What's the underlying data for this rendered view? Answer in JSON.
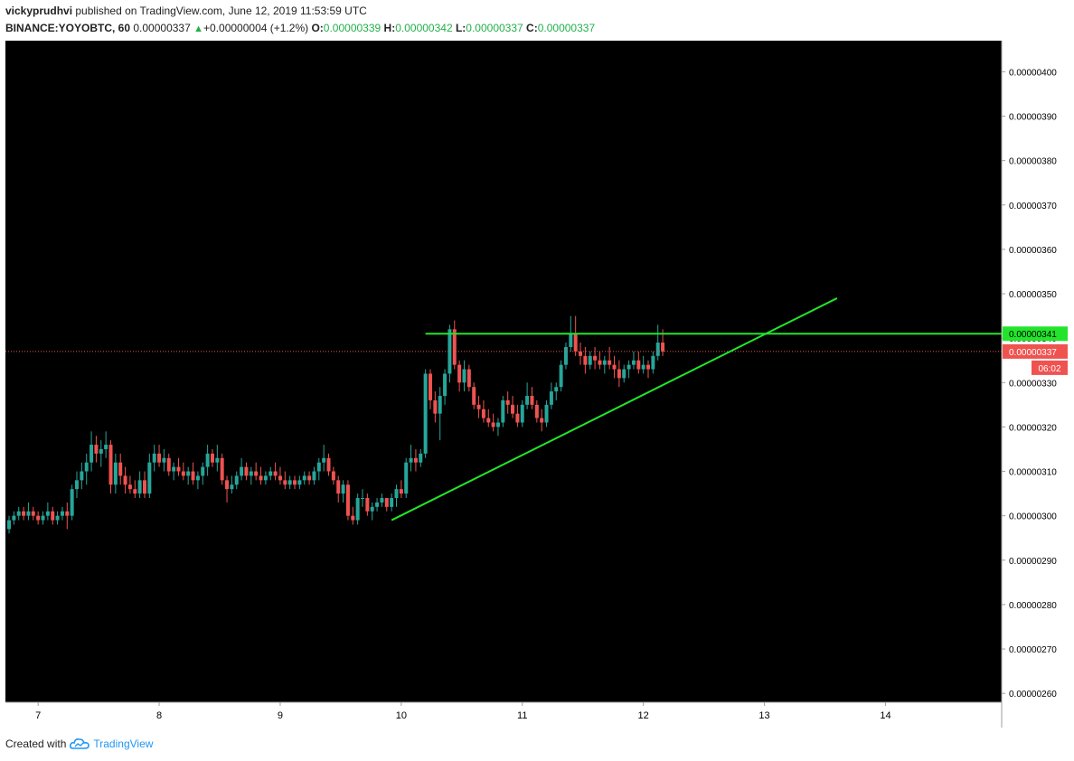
{
  "header": {
    "author": "vickyprudhvi",
    "published_text": "published on TradingView.com, June 12, 2019 11:53:59 UTC",
    "symbol": "BINANCE:YOYOBTC, 60",
    "last": "0.00000337",
    "change": "+0.00000004 (+1.2%)",
    "o_label": "O:",
    "o": "0.00000339",
    "h_label": "H:",
    "h": "0.00000342",
    "l_label": "L:",
    "l": "0.00000337",
    "c_label": "C:",
    "c": "0.00000337"
  },
  "footer": {
    "created_with": "Created with",
    "brand": "TradingView"
  },
  "colors": {
    "background": "#000000",
    "up": "#26a69a",
    "down": "#ef5350",
    "trendline": "#22e52b",
    "price_line": "#ef5350",
    "axis_text": "#000000",
    "resistance_tag": "#22e52b",
    "price_tag": "#ef5350"
  },
  "chart_data": {
    "type": "candlestick",
    "y_axis_ticks": [
      "0.00000400",
      "0.00000390",
      "0.00000380",
      "0.00000370",
      "0.00000360",
      "0.00000350",
      "0.00000340",
      "0.00000330",
      "0.00000320",
      "0.00000310",
      "0.00000300",
      "0.00000290",
      "0.00000280",
      "0.00000270",
      "0.00000260"
    ],
    "y_tick_values": [
      4.0,
      3.9,
      3.8,
      3.7,
      3.6,
      3.5,
      3.4,
      3.3,
      3.2,
      3.1,
      3.0,
      2.9,
      2.8,
      2.7,
      2.6
    ],
    "ylim": [
      2.58,
      4.07
    ],
    "x_axis_ticks": [
      "7",
      "8",
      "9",
      "10",
      "11",
      "12",
      "13",
      "14"
    ],
    "x_tick_values": [
      7,
      8,
      9,
      10,
      11,
      12,
      13,
      14
    ],
    "xlim": [
      6.73,
      14.96
    ],
    "resistance_label": "0.00000341",
    "price_label": "0.00000337",
    "countdown_label": "06:02",
    "current_price": 3.37,
    "resistance_line": {
      "x1": 10.2,
      "x2": 14.96,
      "y": 3.41
    },
    "trendline": {
      "x1": 9.92,
      "y1": 2.99,
      "x2": 13.6,
      "y2": 3.49
    },
    "price_scale_note": "values in units of 1e-6 BTC",
    "candles": [
      [
        6.76,
        2.97,
        3.0,
        2.96,
        2.99
      ],
      [
        6.8,
        2.99,
        3.01,
        2.98,
        3.0
      ],
      [
        6.84,
        3.0,
        3.02,
        2.99,
        3.01
      ],
      [
        6.88,
        3.01,
        3.02,
        2.99,
        3.0
      ],
      [
        6.92,
        3.0,
        3.03,
        2.99,
        3.01
      ],
      [
        6.96,
        3.01,
        3.02,
        2.99,
        3.0
      ],
      [
        7.0,
        3.0,
        3.01,
        2.98,
        2.99
      ],
      [
        7.04,
        2.99,
        3.01,
        2.98,
        3.0
      ],
      [
        7.08,
        3.0,
        3.03,
        2.99,
        3.01
      ],
      [
        7.12,
        3.01,
        3.02,
        2.98,
        2.99
      ],
      [
        7.16,
        2.99,
        3.01,
        2.98,
        3.0
      ],
      [
        7.2,
        3.0,
        3.02,
        2.99,
        3.01
      ],
      [
        7.24,
        3.01,
        3.03,
        2.97,
        3.0
      ],
      [
        7.28,
        3.0,
        3.07,
        2.99,
        3.06
      ],
      [
        7.32,
        3.06,
        3.1,
        3.04,
        3.08
      ],
      [
        7.36,
        3.08,
        3.12,
        3.06,
        3.1
      ],
      [
        7.4,
        3.1,
        3.14,
        3.07,
        3.12
      ],
      [
        7.44,
        3.12,
        3.19,
        3.1,
        3.16
      ],
      [
        7.48,
        3.16,
        3.18,
        3.12,
        3.14
      ],
      [
        7.52,
        3.14,
        3.17,
        3.11,
        3.15
      ],
      [
        7.56,
        3.15,
        3.19,
        3.13,
        3.16
      ],
      [
        7.6,
        3.16,
        3.17,
        3.05,
        3.07
      ],
      [
        7.64,
        3.07,
        3.14,
        3.05,
        3.12
      ],
      [
        7.68,
        3.12,
        3.14,
        3.07,
        3.09
      ],
      [
        7.72,
        3.09,
        3.11,
        3.05,
        3.07
      ],
      [
        7.76,
        3.07,
        3.09,
        3.05,
        3.06
      ],
      [
        7.8,
        3.06,
        3.08,
        3.04,
        3.05
      ],
      [
        7.84,
        3.05,
        3.1,
        3.04,
        3.08
      ],
      [
        7.88,
        3.08,
        3.1,
        3.04,
        3.05
      ],
      [
        7.92,
        3.05,
        3.14,
        3.04,
        3.12
      ],
      [
        7.96,
        3.12,
        3.16,
        3.1,
        3.14
      ],
      [
        8.0,
        3.14,
        3.16,
        3.11,
        3.12
      ],
      [
        8.04,
        3.12,
        3.15,
        3.1,
        3.13
      ],
      [
        8.08,
        3.13,
        3.14,
        3.09,
        3.1
      ],
      [
        8.12,
        3.1,
        3.12,
        3.08,
        3.11
      ],
      [
        8.16,
        3.11,
        3.13,
        3.09,
        3.1
      ],
      [
        8.2,
        3.1,
        3.12,
        3.08,
        3.09
      ],
      [
        8.24,
        3.09,
        3.11,
        3.07,
        3.1
      ],
      [
        8.28,
        3.1,
        3.12,
        3.07,
        3.08
      ],
      [
        8.32,
        3.08,
        3.1,
        3.06,
        3.09
      ],
      [
        8.36,
        3.09,
        3.12,
        3.07,
        3.11
      ],
      [
        8.4,
        3.11,
        3.16,
        3.09,
        3.14
      ],
      [
        8.44,
        3.14,
        3.15,
        3.11,
        3.12
      ],
      [
        8.48,
        3.12,
        3.16,
        3.1,
        3.13
      ],
      [
        8.52,
        3.13,
        3.14,
        3.07,
        3.08
      ],
      [
        8.56,
        3.08,
        3.09,
        3.03,
        3.06
      ],
      [
        8.6,
        3.06,
        3.09,
        3.05,
        3.07
      ],
      [
        8.64,
        3.07,
        3.1,
        3.06,
        3.09
      ],
      [
        8.68,
        3.09,
        3.13,
        3.08,
        3.11
      ],
      [
        8.72,
        3.11,
        3.12,
        3.08,
        3.09
      ],
      [
        8.76,
        3.09,
        3.11,
        3.07,
        3.1
      ],
      [
        8.8,
        3.1,
        3.12,
        3.08,
        3.09
      ],
      [
        8.84,
        3.09,
        3.11,
        3.07,
        3.08
      ],
      [
        8.88,
        3.08,
        3.1,
        3.07,
        3.09
      ],
      [
        8.92,
        3.09,
        3.11,
        3.08,
        3.1
      ],
      [
        8.96,
        3.1,
        3.12,
        3.08,
        3.09
      ],
      [
        9.0,
        3.09,
        3.11,
        3.07,
        3.08
      ],
      [
        9.04,
        3.08,
        3.1,
        3.06,
        3.07
      ],
      [
        9.08,
        3.07,
        3.09,
        3.06,
        3.08
      ],
      [
        9.12,
        3.08,
        3.09,
        3.06,
        3.07
      ],
      [
        9.16,
        3.07,
        3.09,
        3.06,
        3.08
      ],
      [
        9.2,
        3.08,
        3.1,
        3.07,
        3.09
      ],
      [
        9.24,
        3.09,
        3.1,
        3.07,
        3.08
      ],
      [
        9.28,
        3.08,
        3.11,
        3.07,
        3.1
      ],
      [
        9.32,
        3.1,
        3.13,
        3.08,
        3.12
      ],
      [
        9.36,
        3.12,
        3.16,
        3.1,
        3.13
      ],
      [
        9.4,
        3.13,
        3.14,
        3.09,
        3.1
      ],
      [
        9.44,
        3.1,
        3.11,
        3.07,
        3.08
      ],
      [
        9.48,
        3.08,
        3.09,
        3.03,
        3.05
      ],
      [
        9.52,
        3.05,
        3.08,
        3.03,
        3.07
      ],
      [
        9.56,
        3.07,
        3.08,
        2.99,
        3.0
      ],
      [
        9.6,
        3.0,
        3.02,
        2.98,
        2.99
      ],
      [
        9.64,
        2.99,
        3.05,
        2.98,
        3.04
      ],
      [
        9.68,
        3.04,
        3.06,
        3.02,
        3.04
      ],
      [
        9.72,
        3.04,
        3.05,
        3.0,
        3.01
      ],
      [
        9.76,
        3.01,
        3.03,
        2.99,
        3.02
      ],
      [
        9.8,
        3.02,
        3.04,
        3.01,
        3.03
      ],
      [
        9.84,
        3.03,
        3.05,
        3.02,
        3.04
      ],
      [
        9.88,
        3.04,
        3.04,
        3.01,
        3.02
      ],
      [
        9.92,
        3.02,
        3.05,
        3.01,
        3.04
      ],
      [
        9.96,
        3.04,
        3.07,
        3.02,
        3.06
      ],
      [
        10.0,
        3.06,
        3.08,
        3.04,
        3.05
      ],
      [
        10.04,
        3.05,
        3.13,
        3.04,
        3.12
      ],
      [
        10.08,
        3.12,
        3.16,
        3.1,
        3.13
      ],
      [
        10.12,
        3.13,
        3.15,
        3.1,
        3.12
      ],
      [
        10.16,
        3.12,
        3.15,
        3.11,
        3.14
      ],
      [
        10.2,
        3.14,
        3.33,
        3.13,
        3.32
      ],
      [
        10.24,
        3.32,
        3.33,
        3.24,
        3.26
      ],
      [
        10.28,
        3.26,
        3.28,
        3.21,
        3.23
      ],
      [
        10.32,
        3.23,
        3.29,
        3.17,
        3.27
      ],
      [
        10.36,
        3.27,
        3.33,
        3.25,
        3.32
      ],
      [
        10.4,
        3.32,
        3.43,
        3.3,
        3.42
      ],
      [
        10.44,
        3.42,
        3.44,
        3.33,
        3.34
      ],
      [
        10.48,
        3.34,
        3.35,
        3.28,
        3.3
      ],
      [
        10.52,
        3.3,
        3.35,
        3.28,
        3.33
      ],
      [
        10.56,
        3.33,
        3.34,
        3.28,
        3.29
      ],
      [
        10.6,
        3.29,
        3.3,
        3.24,
        3.25
      ],
      [
        10.64,
        3.25,
        3.27,
        3.22,
        3.24
      ],
      [
        10.68,
        3.24,
        3.26,
        3.21,
        3.22
      ],
      [
        10.72,
        3.22,
        3.24,
        3.2,
        3.21
      ],
      [
        10.76,
        3.21,
        3.23,
        3.19,
        3.2
      ],
      [
        10.8,
        3.2,
        3.22,
        3.18,
        3.21
      ],
      [
        10.84,
        3.21,
        3.27,
        3.2,
        3.26
      ],
      [
        10.88,
        3.26,
        3.28,
        3.23,
        3.25
      ],
      [
        10.92,
        3.25,
        3.27,
        3.22,
        3.23
      ],
      [
        10.96,
        3.23,
        3.25,
        3.2,
        3.21
      ],
      [
        11.0,
        3.21,
        3.26,
        3.2,
        3.25
      ],
      [
        11.04,
        3.25,
        3.3,
        3.24,
        3.27
      ],
      [
        11.08,
        3.27,
        3.29,
        3.24,
        3.25
      ],
      [
        11.12,
        3.25,
        3.26,
        3.21,
        3.22
      ],
      [
        11.16,
        3.22,
        3.24,
        3.19,
        3.21
      ],
      [
        11.2,
        3.21,
        3.26,
        3.2,
        3.25
      ],
      [
        11.24,
        3.25,
        3.3,
        3.24,
        3.28
      ],
      [
        11.28,
        3.28,
        3.3,
        3.26,
        3.29
      ],
      [
        11.32,
        3.29,
        3.35,
        3.28,
        3.34
      ],
      [
        11.36,
        3.34,
        3.39,
        3.33,
        3.38
      ],
      [
        11.4,
        3.38,
        3.45,
        3.37,
        3.41
      ],
      [
        11.44,
        3.41,
        3.45,
        3.36,
        3.37
      ],
      [
        11.48,
        3.37,
        3.39,
        3.34,
        3.36
      ],
      [
        11.52,
        3.36,
        3.38,
        3.32,
        3.34
      ],
      [
        11.56,
        3.34,
        3.37,
        3.33,
        3.36
      ],
      [
        11.6,
        3.36,
        3.38,
        3.33,
        3.35
      ],
      [
        11.64,
        3.35,
        3.37,
        3.33,
        3.34
      ],
      [
        11.68,
        3.34,
        3.36,
        3.32,
        3.35
      ],
      [
        11.72,
        3.35,
        3.38,
        3.33,
        3.34
      ],
      [
        11.76,
        3.34,
        3.36,
        3.31,
        3.33
      ],
      [
        11.8,
        3.33,
        3.35,
        3.29,
        3.31
      ],
      [
        11.84,
        3.31,
        3.34,
        3.3,
        3.33
      ],
      [
        11.88,
        3.33,
        3.35,
        3.31,
        3.34
      ],
      [
        11.92,
        3.34,
        3.37,
        3.33,
        3.35
      ],
      [
        11.96,
        3.35,
        3.37,
        3.32,
        3.33
      ],
      [
        12.0,
        3.33,
        3.36,
        3.32,
        3.34
      ],
      [
        12.04,
        3.34,
        3.35,
        3.31,
        3.33
      ],
      [
        12.08,
        3.33,
        3.37,
        3.32,
        3.36
      ],
      [
        12.12,
        3.36,
        3.43,
        3.35,
        3.39
      ],
      [
        12.16,
        3.39,
        3.42,
        3.36,
        3.37
      ]
    ]
  }
}
